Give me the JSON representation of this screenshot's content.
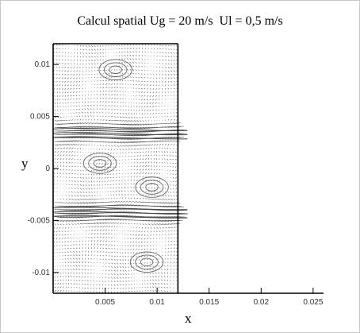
{
  "chart_data": {
    "type": "vector-field",
    "title": "Calcul spatial Ug = 20 m/s  Ul = 0,5 m/s",
    "xlabel": "x",
    "ylabel": "y",
    "xlim": [
      0,
      0.026
    ],
    "ylim": [
      -0.012,
      0.012
    ],
    "xticks": [
      0.005,
      0.01,
      0.015,
      0.02,
      0.025
    ],
    "xtick_labels": [
      "0.005",
      "0.01",
      "0.015",
      "0.02",
      "0.025"
    ],
    "yticks": [
      0.01,
      0.005,
      0,
      -0.005,
      -0.01
    ],
    "ytick_labels": [
      "0.01",
      "0.005",
      "0",
      "-0.005",
      "-0.01"
    ],
    "domain_x_extent": [
      0,
      0.012
    ],
    "jets": [
      {
        "y_center": 0.0034,
        "half_width": 0.0009,
        "max_speed": 1.0
      },
      {
        "y_center": -0.0042,
        "half_width": 0.0009,
        "max_speed": 1.0
      }
    ],
    "vortex_centers": [
      {
        "x": 0.0095,
        "y": -0.0018
      },
      {
        "x": 0.0045,
        "y": 0.0005
      },
      {
        "x": 0.006,
        "y": 0.0095
      },
      {
        "x": 0.009,
        "y": -0.009
      }
    ],
    "grid": false
  }
}
